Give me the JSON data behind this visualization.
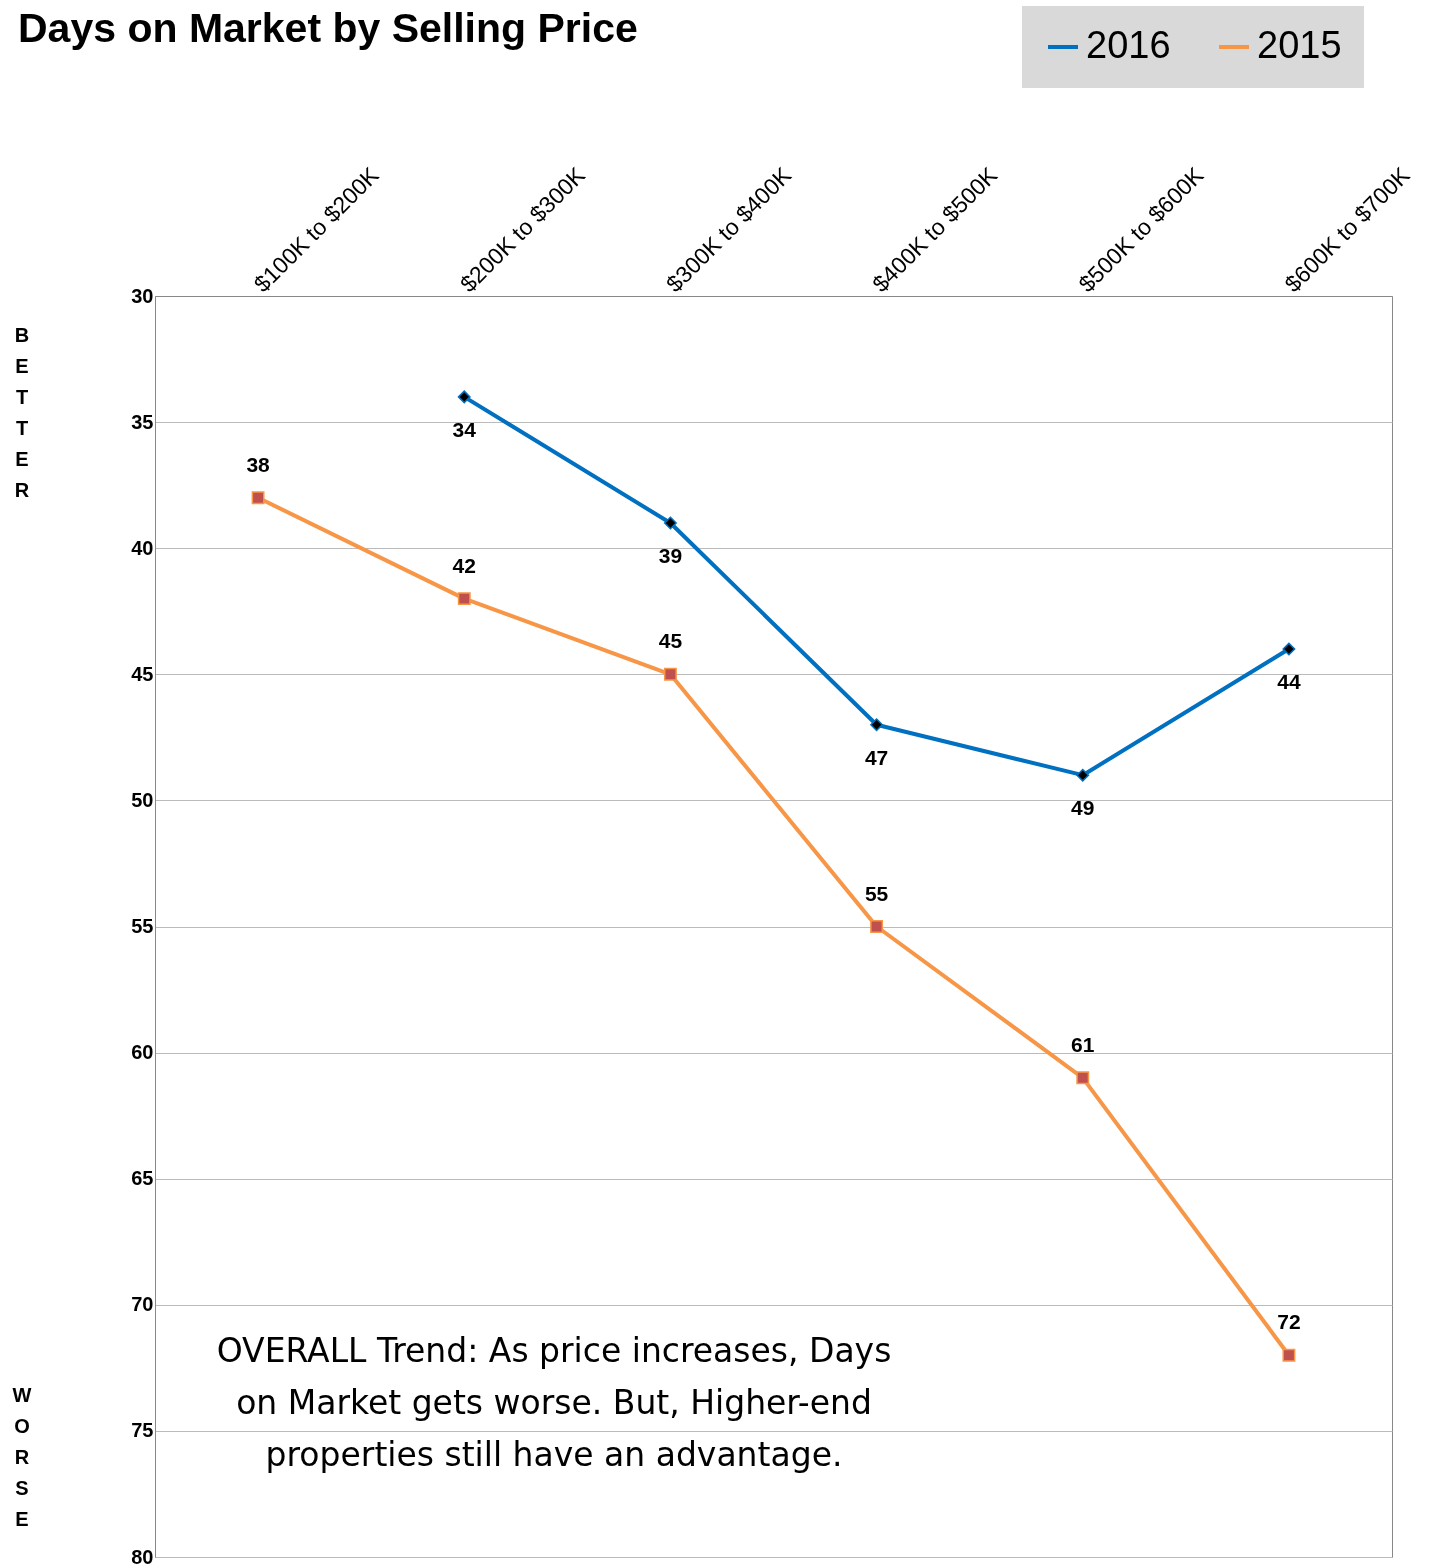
{
  "chart_data": {
    "type": "line",
    "title": "Days on Market by Selling Price",
    "categories": [
      "$100K to $200K",
      "$200K to $300K",
      "$300K to $400K",
      "$400K to $500K",
      "$500K to $600K",
      "$600K to $700K"
    ],
    "series": [
      {
        "name": "2016",
        "color": "#0070c0",
        "marker": "diamond",
        "values": [
          null,
          34,
          39,
          47,
          49,
          44
        ]
      },
      {
        "name": "2015",
        "color": "#f79646",
        "marker": "square",
        "values": [
          38,
          42,
          45,
          55,
          61,
          72
        ]
      }
    ],
    "ylim": [
      80,
      30
    ],
    "yticks": [
      30,
      35,
      40,
      45,
      50,
      55,
      60,
      65,
      70,
      75,
      80
    ],
    "grid": "y",
    "legend": "top right",
    "data_labels": true,
    "annotations": [
      "BETTER",
      "WORSE",
      "OVERALL Trend: As price increases, Days on Market gets worse. But, Higher-end properties still have an advantage."
    ]
  }
}
